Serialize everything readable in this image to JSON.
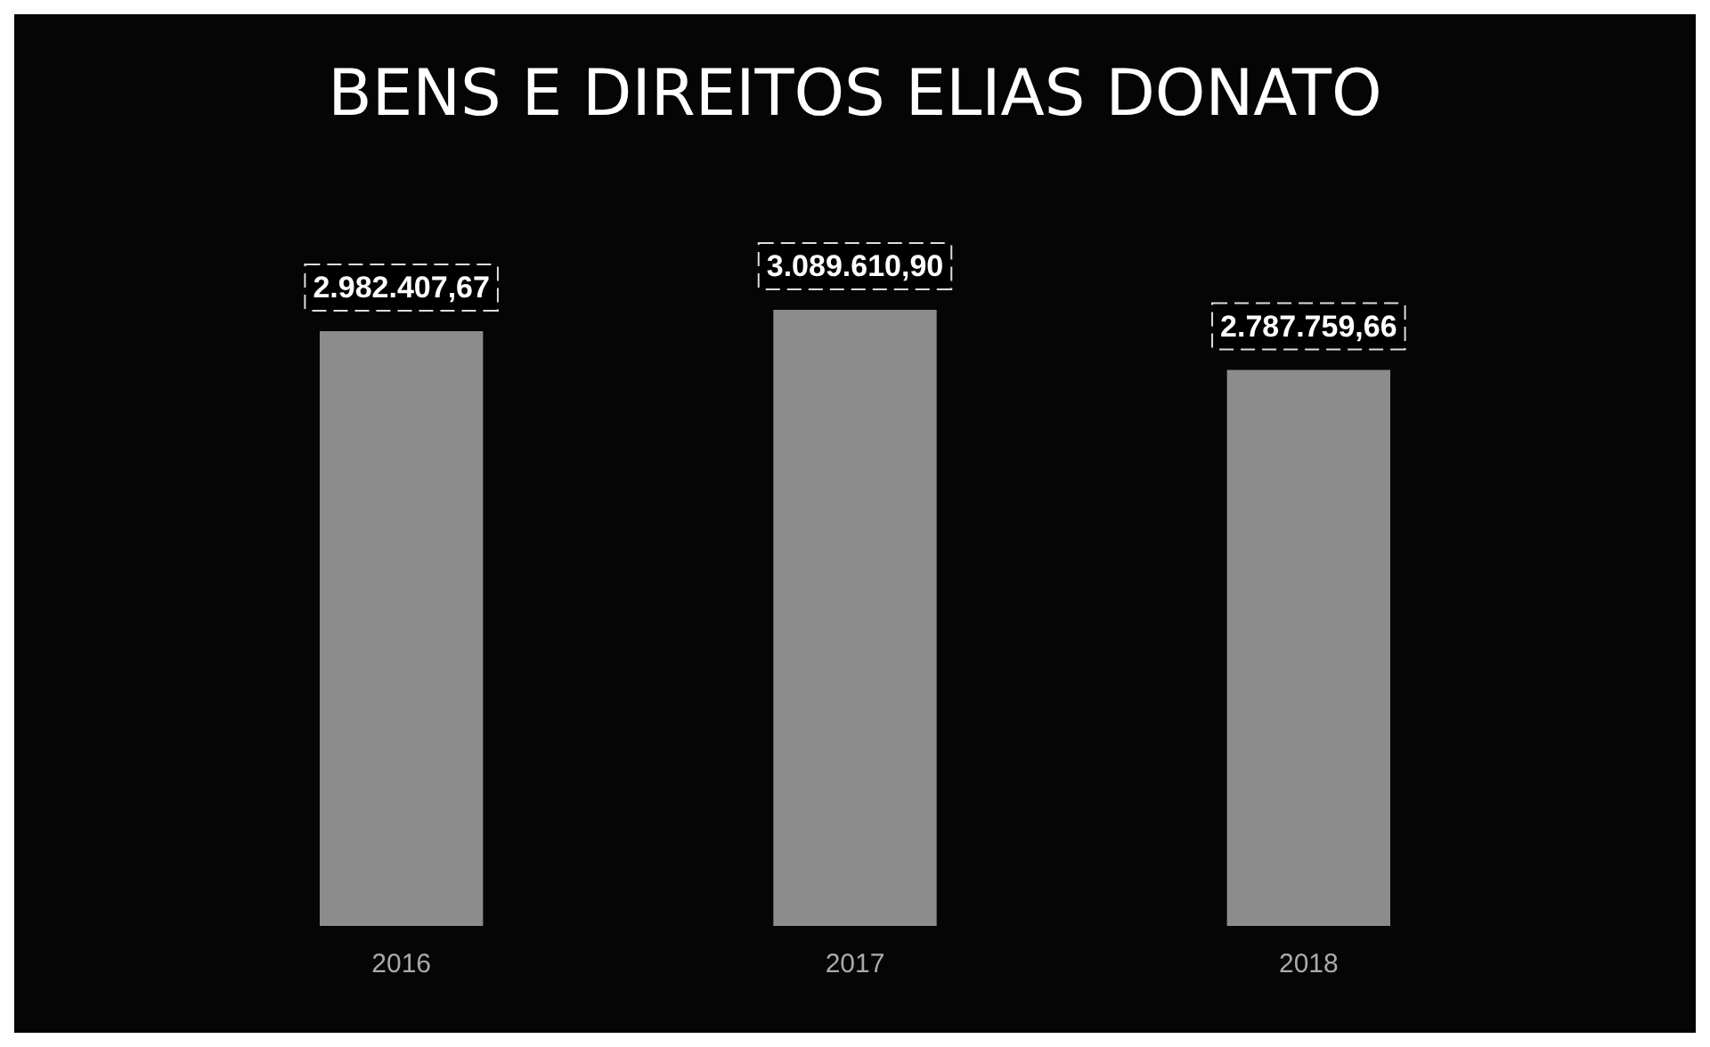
{
  "chart_data": {
    "type": "bar",
    "title": "BENS E DIREITOS ELIAS DONATO",
    "categories": [
      "2016",
      "2017",
      "2018"
    ],
    "values": [
      2982407.67,
      3089610.9,
      2787759.66
    ],
    "value_labels": [
      "2.982.407,67",
      "3.089.610,90",
      "2.787.759,66"
    ],
    "color": "#8c8c8c",
    "tick_labels": "x",
    "grid": false
  }
}
